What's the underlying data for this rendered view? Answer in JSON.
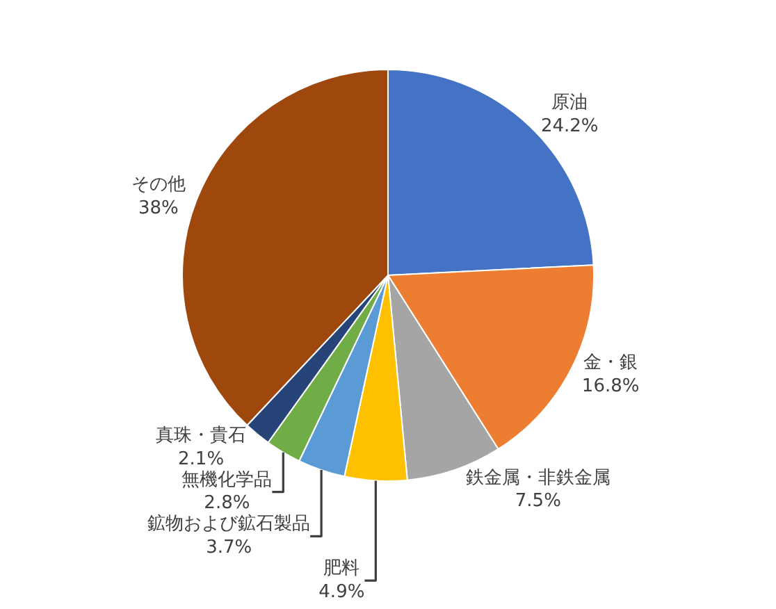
{
  "chart_data": {
    "type": "pie",
    "categories": [
      "原油",
      "金・銀",
      "鉄金属・非鉄金属",
      "肥料",
      "鉱物および鉱石製品",
      "無機化学品",
      "真珠・貴石",
      "その他"
    ],
    "values": [
      24.2,
      16.8,
      7.5,
      4.9,
      3.7,
      2.8,
      2.1,
      38
    ],
    "value_labels": [
      "24.2%",
      "16.8%",
      "7.5%",
      "4.9%",
      "3.7%",
      "2.8%",
      "2.1%",
      "38%"
    ],
    "colors": [
      "#4472c4",
      "#ed7d31",
      "#a5a5a5",
      "#ffc000",
      "#5b9bd5",
      "#70ad47",
      "#264478",
      "#9e480e"
    ],
    "legend": false
  }
}
